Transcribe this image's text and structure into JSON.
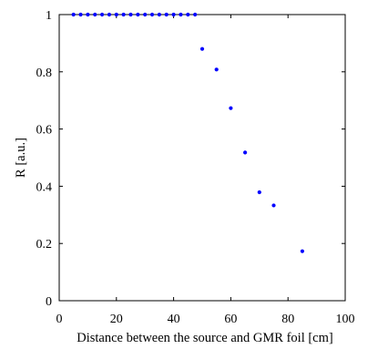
{
  "chart_data": {
    "type": "scatter",
    "title": "",
    "xlabel": "Distance between the source and GMR foil [cm]",
    "ylabel": "R [a.u.]",
    "xlim": [
      0,
      100
    ],
    "ylim": [
      0,
      1
    ],
    "xticks": [
      0,
      20,
      40,
      60,
      80,
      100
    ],
    "yticks": [
      0,
      0.2,
      0.4,
      0.6,
      0.8,
      1
    ],
    "xtick_labels": [
      "0",
      "20",
      "40",
      "60",
      "80",
      "100"
    ],
    "ytick_labels": [
      "0",
      "0.2",
      "0.4",
      "0.6",
      "0.8",
      "1"
    ],
    "grid": false,
    "box": true,
    "colors": {
      "marker": "#0000ff",
      "axis": "#000000",
      "background": "#ffffff"
    },
    "series": [
      {
        "x": [
          5,
          7.5,
          10,
          12.5,
          15,
          17.5,
          20,
          22.5,
          25,
          27.5,
          30,
          32.5,
          35,
          37.5,
          40,
          42.5,
          45,
          47.5,
          50,
          55,
          60,
          65,
          70,
          75,
          85
        ],
        "y": [
          1,
          1,
          1,
          1,
          1,
          1,
          1,
          1,
          1,
          1,
          1,
          1,
          1,
          1,
          1,
          1,
          1,
          1,
          0.88,
          0.808,
          0.673,
          0.518,
          0.379,
          0.333,
          0.173
        ]
      }
    ]
  }
}
